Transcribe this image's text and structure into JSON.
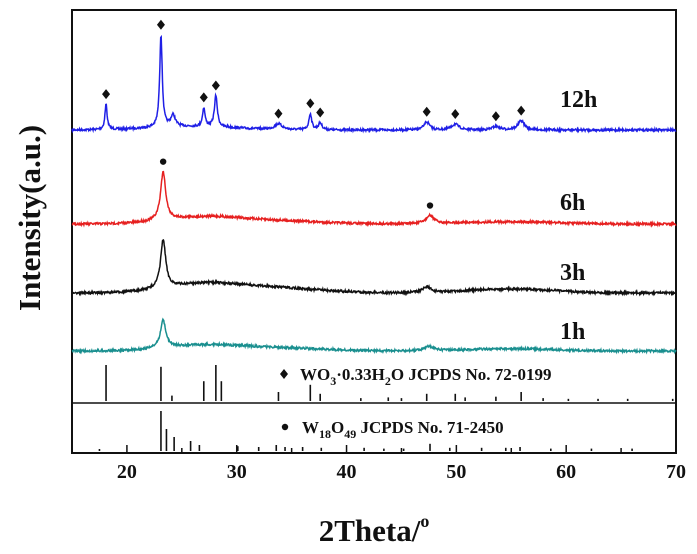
{
  "chart_data": {
    "type": "line",
    "title": "",
    "xlabel": "2Theta/",
    "xlabel_sup": "o",
    "ylabel": "Intensity(a.u.)",
    "xlim": [
      15,
      70
    ],
    "x_ticks": [
      20,
      30,
      40,
      50,
      60,
      70
    ],
    "grid": false,
    "series": [
      {
        "name": "12h",
        "color": "#1f1fe6",
        "baseline": 0.6,
        "peaks": [
          [
            18.1,
            0.22,
            0.12
          ],
          [
            23.1,
            0.8,
            0.14
          ],
          [
            24.2,
            0.1,
            0.25
          ],
          [
            27.0,
            0.16,
            0.14
          ],
          [
            28.1,
            0.27,
            0.16
          ],
          [
            33.8,
            0.05,
            0.4
          ],
          [
            36.7,
            0.14,
            0.15
          ],
          [
            37.6,
            0.06,
            0.2
          ],
          [
            47.3,
            0.07,
            0.3
          ],
          [
            49.9,
            0.05,
            0.4
          ],
          [
            53.6,
            0.03,
            0.4
          ],
          [
            55.9,
            0.08,
            0.35
          ]
        ],
        "humps": [
          [
            26,
            0.03,
            4
          ]
        ],
        "markers": [
          18.1,
          23.1,
          27.0,
          28.1,
          33.8,
          36.7,
          37.6,
          47.3,
          49.9,
          53.6,
          55.9
        ],
        "marker_symbol": "diamond"
      },
      {
        "name": "6h",
        "color": "#e62020",
        "baseline": 0.0,
        "peaks": [
          [
            23.3,
            0.42,
            0.28
          ],
          [
            47.6,
            0.07,
            0.45
          ]
        ],
        "humps": [
          [
            27,
            0.06,
            3.5
          ],
          [
            34,
            0.025,
            4
          ],
          [
            55,
            0.02,
            4
          ]
        ],
        "markers": [
          23.3,
          47.6
        ],
        "marker_symbol": "circle"
      },
      {
        "name": "3h",
        "color": "#111111",
        "baseline": 0.0,
        "peaks": [
          [
            23.3,
            0.42,
            0.28
          ],
          [
            47.3,
            0.05,
            0.45
          ]
        ],
        "humps": [
          [
            27,
            0.08,
            3.5
          ],
          [
            34,
            0.04,
            4
          ],
          [
            55,
            0.035,
            4
          ]
        ],
        "markers": [],
        "marker_symbol": "none"
      },
      {
        "name": "1h",
        "color": "#1a8f8f",
        "baseline": 0.0,
        "peaks": [
          [
            23.3,
            0.24,
            0.3
          ],
          [
            47.5,
            0.04,
            0.5
          ]
        ],
        "humps": [
          [
            27,
            0.05,
            3.5
          ],
          [
            34,
            0.025,
            4
          ],
          [
            55,
            0.02,
            4
          ]
        ],
        "markers": [],
        "marker_symbol": "none"
      }
    ],
    "references": [
      {
        "label_parts": [
          "WO",
          "3",
          "·0.33H",
          "2",
          "O JCPDS No. 72-0199"
        ],
        "marker_symbol": "diamond",
        "lines": [
          [
            18.1,
            1.0
          ],
          [
            23.1,
            0.95
          ],
          [
            24.1,
            0.15
          ],
          [
            27.0,
            0.55
          ],
          [
            28.1,
            1.0
          ],
          [
            28.6,
            0.55
          ],
          [
            33.8,
            0.25
          ],
          [
            36.7,
            0.45
          ],
          [
            37.6,
            0.2
          ],
          [
            41.3,
            0.08
          ],
          [
            43.8,
            0.1
          ],
          [
            45.0,
            0.08
          ],
          [
            47.3,
            0.2
          ],
          [
            49.9,
            0.2
          ],
          [
            50.8,
            0.1
          ],
          [
            53.6,
            0.12
          ],
          [
            55.9,
            0.25
          ],
          [
            57.9,
            0.08
          ],
          [
            60.2,
            0.06
          ],
          [
            62.9,
            0.06
          ],
          [
            65.6,
            0.06
          ],
          [
            69.7,
            0.06
          ]
        ]
      },
      {
        "label_parts": [
          "W",
          "18",
          "O",
          "49",
          " JCPDS No. 71-2450"
        ],
        "marker_symbol": "circle",
        "lines": [
          [
            17.5,
            0.05
          ],
          [
            23.1,
            1.0
          ],
          [
            23.6,
            0.55
          ],
          [
            24.3,
            0.35
          ],
          [
            25.8,
            0.25
          ],
          [
            26.6,
            0.15
          ],
          [
            30.1,
            0.12
          ],
          [
            32.0,
            0.1
          ],
          [
            33.6,
            0.15
          ],
          [
            34.4,
            0.1
          ],
          [
            36.0,
            0.1
          ],
          [
            37.7,
            0.08
          ],
          [
            41.6,
            0.08
          ],
          [
            43.4,
            0.06
          ],
          [
            45.2,
            0.06
          ],
          [
            47.6,
            0.18
          ],
          [
            49.4,
            0.08
          ],
          [
            52.3,
            0.08
          ],
          [
            54.5,
            0.08
          ],
          [
            55.8,
            0.1
          ],
          [
            58.6,
            0.06
          ],
          [
            62.3,
            0.06
          ],
          [
            66.0,
            0.06
          ]
        ]
      }
    ]
  }
}
